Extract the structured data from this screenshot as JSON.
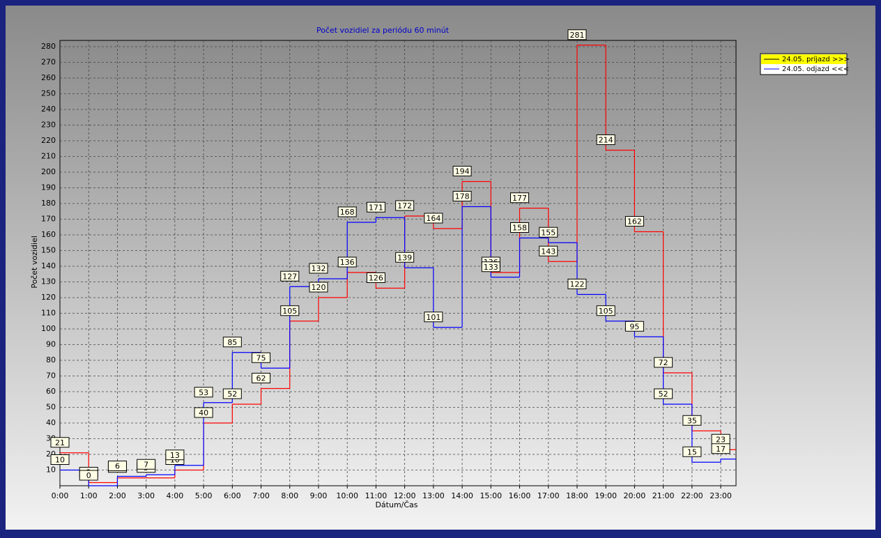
{
  "chart_data": {
    "type": "step",
    "title": "Počet vozidiel za periódu 60 minút",
    "xlabel": "Dátum/Čas",
    "ylabel": "Počet vozidiel",
    "categories": [
      "0:00",
      "1:00",
      "2:00",
      "3:00",
      "4:00",
      "5:00",
      "6:00",
      "7:00",
      "8:00",
      "9:00",
      "10:00",
      "11:00",
      "12:00",
      "13:00",
      "14:00",
      "15:00",
      "16:00",
      "17:00",
      "18:00",
      "19:00",
      "20:00",
      "21:00",
      "22:00",
      "23:00"
    ],
    "series": [
      {
        "name": "24.05.  príjazd >>>",
        "color": "#ff0000",
        "values": [
          21,
          2,
          5,
          5,
          10,
          40,
          52,
          62,
          105,
          120,
          136,
          126,
          172,
          164,
          194,
          136,
          177,
          143,
          281,
          214,
          162,
          72,
          35,
          23
        ]
      },
      {
        "name": "24.05.  odjazd <<<",
        "color": "#0000ff",
        "values": [
          10,
          0,
          6,
          7,
          13,
          53,
          85,
          75,
          127,
          132,
          168,
          171,
          139,
          101,
          178,
          133,
          158,
          155,
          122,
          105,
          95,
          52,
          15,
          17
        ]
      }
    ],
    "ylim": [
      0,
      284
    ],
    "yticks": [
      10,
      20,
      30,
      40,
      50,
      60,
      70,
      80,
      90,
      100,
      110,
      120,
      130,
      140,
      150,
      160,
      170,
      180,
      190,
      200,
      210,
      220,
      230,
      240,
      250,
      260,
      270,
      280
    ],
    "grid": true,
    "legend": "top-right"
  }
}
